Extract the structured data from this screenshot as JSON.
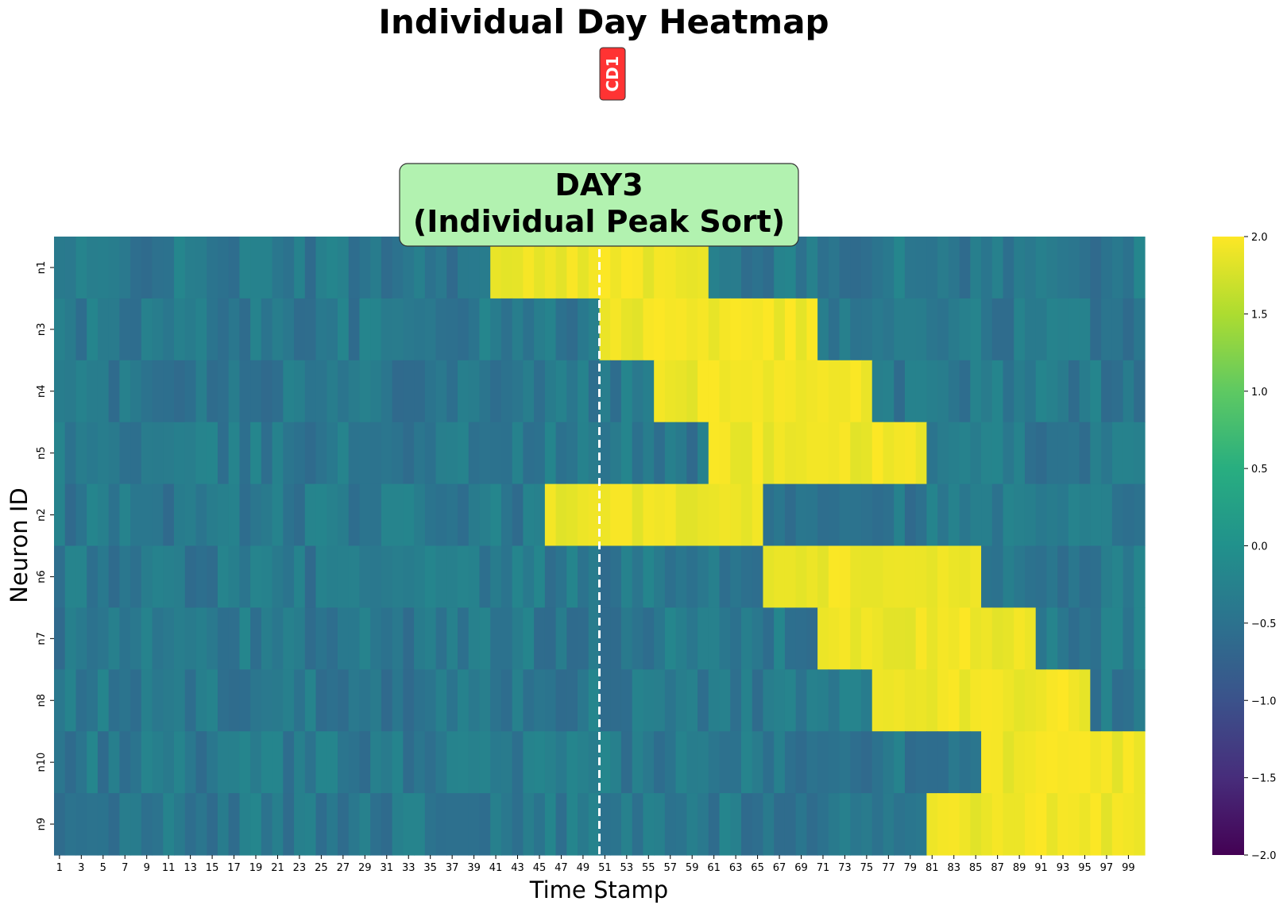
{
  "figure": {
    "suptitle": "Individual Day Heatmap",
    "badge": "CD1",
    "badge_color": "#ff3333"
  },
  "chart_data": {
    "type": "heatmap",
    "title": "DAY3\n(Individual Peak Sort)",
    "title_box_color": "#b2f2b0",
    "xlabel": "Time Stamp",
    "ylabel": "Neuron ID",
    "rows": [
      "n1",
      "n3",
      "n4",
      "n5",
      "n2",
      "n6",
      "n7",
      "n8",
      "n10",
      "n9"
    ],
    "x_start": 1,
    "x_end": 100,
    "x_tick_labels": [
      "1",
      "3",
      "5",
      "7",
      "9",
      "11",
      "13",
      "15",
      "17",
      "19",
      "21",
      "23",
      "25",
      "27",
      "29",
      "31",
      "33",
      "35",
      "37",
      "39",
      "41",
      "43",
      "45",
      "47",
      "49",
      "51",
      "53",
      "55",
      "57",
      "59",
      "61",
      "63",
      "65",
      "67",
      "69",
      "71",
      "73",
      "75",
      "77",
      "79",
      "81",
      "83",
      "85",
      "87",
      "89",
      "91",
      "93",
      "95",
      "97",
      "99"
    ],
    "baseline_value": -0.4,
    "peak_value": 2.0,
    "active_windows": [
      {
        "neuron": "n1",
        "start": 41,
        "end": 60
      },
      {
        "neuron": "n3",
        "start": 51,
        "end": 70
      },
      {
        "neuron": "n4",
        "start": 56,
        "end": 75
      },
      {
        "neuron": "n5",
        "start": 61,
        "end": 80
      },
      {
        "neuron": "n2",
        "start": 46,
        "end": 65
      },
      {
        "neuron": "n6",
        "start": 66,
        "end": 85
      },
      {
        "neuron": "n7",
        "start": 71,
        "end": 90
      },
      {
        "neuron": "n8",
        "start": 76,
        "end": 95
      },
      {
        "neuron": "n10",
        "start": 86,
        "end": 100
      },
      {
        "neuron": "n9",
        "start": 81,
        "end": 100
      }
    ],
    "vline_x": 51,
    "colormap": "viridis",
    "colorbar_range": [
      -2.0,
      2.0
    ],
    "colorbar_ticks": [
      "2.0",
      "1.5",
      "1.0",
      "0.5",
      "0.0",
      "−0.5",
      "−1.0",
      "−1.5",
      "−2.0"
    ]
  }
}
